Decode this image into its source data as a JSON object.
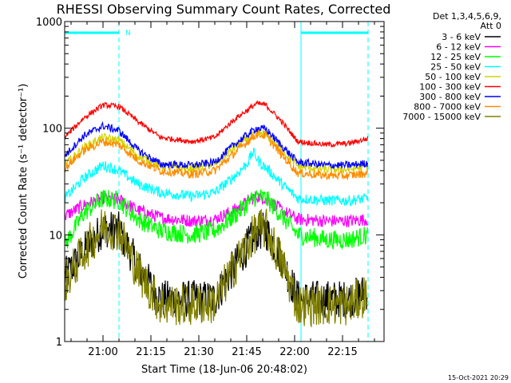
{
  "chart_data": {
    "type": "line",
    "title": "RHESSI Observing Summary Count Rates, Corrected",
    "xlabel": "Start Time (18-Jun-06 20:48:02)",
    "ylabel": "Corrected Count Rate (s⁻¹ detector⁻¹)",
    "x_unit": "minutes since 20:48:02",
    "xlim": [
      0,
      100
    ],
    "ylim": [
      1,
      1000
    ],
    "y_scale": "log",
    "x_ticks": [
      {
        "label": "21:00",
        "t": 12
      },
      {
        "label": "21:15",
        "t": 27
      },
      {
        "label": "21:30",
        "t": 42
      },
      {
        "label": "21:45",
        "t": 57
      },
      {
        "label": "22:00",
        "t": 72
      },
      {
        "label": "22:15",
        "t": 87
      }
    ],
    "y_ticks": [
      {
        "label": "1",
        "v": 1
      },
      {
        "label": "10",
        "v": 10
      },
      {
        "label": "100",
        "v": 100
      },
      {
        "label": "1000",
        "v": 1000
      }
    ],
    "legend_header": [
      "Det 1,3,4,5,6,9,",
      "Att 0"
    ],
    "series": [
      {
        "name": "3 - 6 keV",
        "color": "#000000",
        "points": [
          [
            0,
            4
          ],
          [
            6,
            7
          ],
          [
            12,
            11.5
          ],
          [
            17,
            11
          ],
          [
            23,
            5
          ],
          [
            30,
            2.5
          ],
          [
            40,
            2.5
          ],
          [
            47,
            2.5
          ],
          [
            53,
            5
          ],
          [
            60,
            10.5
          ],
          [
            63,
            11
          ],
          [
            68,
            6
          ],
          [
            73,
            2.5
          ],
          [
            82,
            2.5
          ],
          [
            89,
            2.5
          ],
          [
            95,
            3
          ]
        ]
      },
      {
        "name": "6 - 12 keV",
        "color": "#ff00ff",
        "points": [
          [
            0,
            15
          ],
          [
            6,
            19
          ],
          [
            12,
            22
          ],
          [
            17,
            21.5
          ],
          [
            23,
            17
          ],
          [
            30,
            14.5
          ],
          [
            40,
            13.5
          ],
          [
            47,
            14
          ],
          [
            53,
            17
          ],
          [
            60,
            23
          ],
          [
            63,
            22
          ],
          [
            68,
            17
          ],
          [
            73,
            14
          ],
          [
            82,
            13.5
          ],
          [
            89,
            13.5
          ],
          [
            95,
            14
          ]
        ]
      },
      {
        "name": "12 - 25 keV",
        "color": "#00ff00",
        "points": [
          [
            0,
            8
          ],
          [
            6,
            16
          ],
          [
            12,
            22
          ],
          [
            17,
            21
          ],
          [
            23,
            14
          ],
          [
            30,
            11
          ],
          [
            40,
            10
          ],
          [
            47,
            11
          ],
          [
            53,
            15
          ],
          [
            60,
            23
          ],
          [
            63,
            22
          ],
          [
            68,
            15
          ],
          [
            73,
            10
          ],
          [
            82,
            9
          ],
          [
            89,
            9
          ],
          [
            95,
            10
          ]
        ]
      },
      {
        "name": "25 - 50 keV",
        "color": "#00ffff",
        "points": [
          [
            0,
            22
          ],
          [
            6,
            34
          ],
          [
            12,
            45
          ],
          [
            17,
            40
          ],
          [
            23,
            30
          ],
          [
            30,
            25
          ],
          [
            40,
            23
          ],
          [
            47,
            25
          ],
          [
            53,
            35
          ],
          [
            57,
            46
          ],
          [
            59,
            60
          ],
          [
            61,
            48
          ],
          [
            64,
            40
          ],
          [
            68,
            30
          ],
          [
            73,
            22
          ],
          [
            82,
            21
          ],
          [
            89,
            21
          ],
          [
            95,
            22
          ]
        ]
      },
      {
        "name": "50 - 100 keV",
        "color": "#d4d400",
        "points": [
          [
            0,
            45
          ],
          [
            6,
            66
          ],
          [
            12,
            82
          ],
          [
            17,
            77
          ],
          [
            23,
            55
          ],
          [
            30,
            44
          ],
          [
            40,
            42
          ],
          [
            47,
            46
          ],
          [
            53,
            65
          ],
          [
            60,
            90
          ],
          [
            63,
            88
          ],
          [
            68,
            62
          ],
          [
            73,
            44
          ],
          [
            82,
            41
          ],
          [
            89,
            41
          ],
          [
            95,
            44
          ]
        ]
      },
      {
        "name": "100 - 300 keV",
        "color": "#ff0000",
        "points": [
          [
            0,
            82
          ],
          [
            6,
            125
          ],
          [
            12,
            165
          ],
          [
            17,
            160
          ],
          [
            23,
            115
          ],
          [
            30,
            82
          ],
          [
            40,
            75
          ],
          [
            47,
            82
          ],
          [
            53,
            120
          ],
          [
            60,
            170
          ],
          [
            63,
            165
          ],
          [
            68,
            115
          ],
          [
            73,
            75
          ],
          [
            82,
            70
          ],
          [
            89,
            72
          ],
          [
            95,
            80
          ]
        ]
      },
      {
        "name": "300 - 800 keV",
        "color": "#0000ff",
        "points": [
          [
            0,
            55
          ],
          [
            6,
            85
          ],
          [
            12,
            105
          ],
          [
            17,
            95
          ],
          [
            23,
            62
          ],
          [
            30,
            46
          ],
          [
            40,
            45
          ],
          [
            47,
            48
          ],
          [
            53,
            70
          ],
          [
            60,
            100
          ],
          [
            63,
            98
          ],
          [
            68,
            68
          ],
          [
            73,
            48
          ],
          [
            82,
            45
          ],
          [
            89,
            45
          ],
          [
            95,
            47
          ]
        ]
      },
      {
        "name": "800 - 7000 keV",
        "color": "#ff8c00",
        "points": [
          [
            0,
            42
          ],
          [
            6,
            62
          ],
          [
            12,
            75
          ],
          [
            17,
            70
          ],
          [
            23,
            50
          ],
          [
            30,
            40
          ],
          [
            40,
            37
          ],
          [
            47,
            40
          ],
          [
            53,
            58
          ],
          [
            60,
            88
          ],
          [
            63,
            85
          ],
          [
            68,
            56
          ],
          [
            73,
            38
          ],
          [
            82,
            36
          ],
          [
            89,
            36
          ],
          [
            95,
            38
          ]
        ]
      },
      {
        "name": "7000 - 15000 keV",
        "color": "#808000",
        "points": [
          [
            0,
            3.5
          ],
          [
            6,
            7
          ],
          [
            12,
            12
          ],
          [
            17,
            11
          ],
          [
            23,
            4.5
          ],
          [
            30,
            2.2
          ],
          [
            40,
            2.2
          ],
          [
            47,
            2.3
          ],
          [
            53,
            5
          ],
          [
            60,
            11
          ],
          [
            63,
            11.5
          ],
          [
            68,
            5.5
          ],
          [
            73,
            2.2
          ],
          [
            82,
            2.2
          ],
          [
            89,
            2.2
          ],
          [
            95,
            2.8
          ]
        ]
      }
    ],
    "vertical_lines": [
      {
        "t": 0,
        "style": "solid"
      },
      {
        "t": 17,
        "style": "dashed"
      },
      {
        "t": 74,
        "style": "solid"
      },
      {
        "t": 95,
        "style": "dashed"
      }
    ],
    "top_bars": [
      {
        "t0": 0,
        "t1": 17
      },
      {
        "t0": 74,
        "t1": 95
      }
    ],
    "top_bar_label": "N",
    "timestamp": "15-Oct-2021 20:29"
  }
}
